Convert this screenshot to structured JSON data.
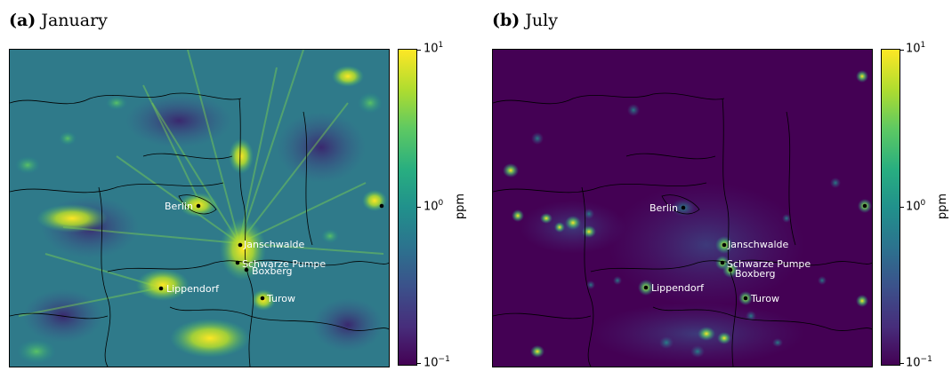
{
  "panels": [
    {
      "tag": "(a)",
      "title": "January",
      "colorbar": {
        "max_label": "10",
        "max_exp": "1",
        "mid_label": "10",
        "mid_exp": "0",
        "min_label": "10",
        "min_exp": "−1",
        "unit": "ppm"
      },
      "background_color": "#2a6f8c"
    },
    {
      "tag": "(b)",
      "title": "July",
      "colorbar": {
        "max_label": "10",
        "max_exp": "1",
        "mid_label": "10",
        "mid_exp": "0",
        "min_label": "10",
        "min_exp": "−1",
        "unit": "ppm"
      },
      "background_color": "#440154"
    }
  ],
  "cities": [
    {
      "name": "Berlin"
    },
    {
      "name": "Janschwalde"
    },
    {
      "name": "Schwarze Pumpe"
    },
    {
      "name": "Boxberg"
    },
    {
      "name": "Lippendorf"
    },
    {
      "name": "Turow"
    }
  ],
  "colormap": "viridis",
  "scale": "log"
}
